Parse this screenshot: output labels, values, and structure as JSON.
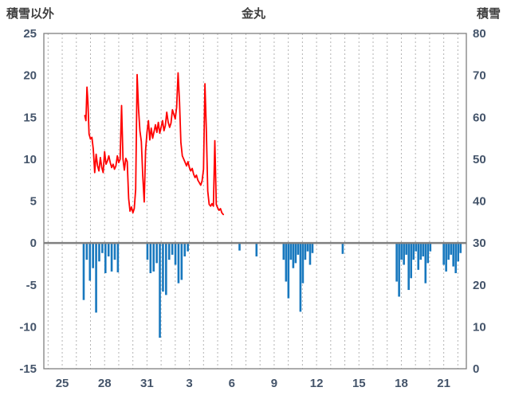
{
  "chart_data": {
    "type": "line",
    "title": "金丸",
    "left_axis_title": "積雪以外",
    "right_axis_title": "積雪",
    "left_ylim": [
      -15,
      25
    ],
    "right_ylim": [
      0,
      80
    ],
    "left_axis_ticks": [
      25,
      20,
      15,
      10,
      5,
      0,
      -5,
      -10,
      -15
    ],
    "right_axis_ticks": [
      80,
      70,
      60,
      50,
      40,
      30,
      20,
      10,
      0
    ],
    "x_tick_labels": [
      "25",
      "28",
      "31",
      "3",
      "6",
      "9",
      "12",
      "15",
      "18",
      "21"
    ],
    "x_tick_days": [
      25,
      28,
      31,
      34,
      37,
      40,
      43,
      46,
      49,
      52
    ],
    "x_domain": [
      23.7,
      53.6
    ],
    "grid": "vertical-dashed-daily",
    "legend": "none",
    "colors": {
      "line": "#ff0000",
      "bar": "#1878be",
      "frame": "#808080",
      "zero_line": "#808080",
      "grid": "#b3b3b3",
      "tick_text": "#44546a",
      "title_text": "#3f3f3f"
    },
    "series": [
      {
        "name": "red-line-left-axis",
        "type": "line",
        "axis": "left",
        "color": "#ff0000",
        "points": [
          [
            26.6,
            15.2
          ],
          [
            26.68,
            14.6
          ],
          [
            26.75,
            18.6
          ],
          [
            26.82,
            16.8
          ],
          [
            26.9,
            13.0
          ],
          [
            27.0,
            12.4
          ],
          [
            27.1,
            12.6
          ],
          [
            27.2,
            11.2
          ],
          [
            27.3,
            8.4
          ],
          [
            27.4,
            10.6
          ],
          [
            27.5,
            9.2
          ],
          [
            27.6,
            8.6
          ],
          [
            27.7,
            10.2
          ],
          [
            27.8,
            9.0
          ],
          [
            27.9,
            8.4
          ],
          [
            28.0,
            10.9
          ],
          [
            28.1,
            9.4
          ],
          [
            28.2,
            9.8
          ],
          [
            28.3,
            10.4
          ],
          [
            28.4,
            9.6
          ],
          [
            28.5,
            9.0
          ],
          [
            28.6,
            9.4
          ],
          [
            28.7,
            8.8
          ],
          [
            28.8,
            9.2
          ],
          [
            28.9,
            10.4
          ],
          [
            29.0,
            9.6
          ],
          [
            29.1,
            10.0
          ],
          [
            29.2,
            16.4
          ],
          [
            29.3,
            10.0
          ],
          [
            29.4,
            8.7
          ],
          [
            29.5,
            10.1
          ],
          [
            29.6,
            9.7
          ],
          [
            29.7,
            5.3
          ],
          [
            29.8,
            3.8
          ],
          [
            29.9,
            4.3
          ],
          [
            30.0,
            3.6
          ],
          [
            30.1,
            4.1
          ],
          [
            30.2,
            6.4
          ],
          [
            30.3,
            20.1
          ],
          [
            30.4,
            16.0
          ],
          [
            30.5,
            13.4
          ],
          [
            30.6,
            12.1
          ],
          [
            30.7,
            8.0
          ],
          [
            30.8,
            4.9
          ],
          [
            30.9,
            11.0
          ],
          [
            31.0,
            13.2
          ],
          [
            31.1,
            14.6
          ],
          [
            31.2,
            12.3
          ],
          [
            31.3,
            13.7
          ],
          [
            31.4,
            12.5
          ],
          [
            31.5,
            13.3
          ],
          [
            31.6,
            14.1
          ],
          [
            31.7,
            13.2
          ],
          [
            31.8,
            14.4
          ],
          [
            31.9,
            13.1
          ],
          [
            32.0,
            13.8
          ],
          [
            32.1,
            14.6
          ],
          [
            32.2,
            13.4
          ],
          [
            32.3,
            14.0
          ],
          [
            32.4,
            15.6
          ],
          [
            32.5,
            14.4
          ],
          [
            32.6,
            13.8
          ],
          [
            32.7,
            14.3
          ],
          [
            32.8,
            15.9
          ],
          [
            33.0,
            14.8
          ],
          [
            33.1,
            16.2
          ],
          [
            33.2,
            20.3
          ],
          [
            33.3,
            16.8
          ],
          [
            33.4,
            12.0
          ],
          [
            33.5,
            10.4
          ],
          [
            33.6,
            10.0
          ],
          [
            33.7,
            9.6
          ],
          [
            33.8,
            9.2
          ],
          [
            33.9,
            9.7
          ],
          [
            34.0,
            9.0
          ],
          [
            34.1,
            8.6
          ],
          [
            34.2,
            8.9
          ],
          [
            34.3,
            8.2
          ],
          [
            34.4,
            7.8
          ],
          [
            34.5,
            8.1
          ],
          [
            34.6,
            7.5
          ],
          [
            34.7,
            7.2
          ],
          [
            34.8,
            6.9
          ],
          [
            34.9,
            7.4
          ],
          [
            35.0,
            8.8
          ],
          [
            35.1,
            19.0
          ],
          [
            35.2,
            13.6
          ],
          [
            35.3,
            6.2
          ],
          [
            35.4,
            4.6
          ],
          [
            35.5,
            4.4
          ],
          [
            35.6,
            4.7
          ],
          [
            35.7,
            4.4
          ],
          [
            35.8,
            12.2
          ],
          [
            35.9,
            4.6
          ],
          [
            36.0,
            4.2
          ],
          [
            36.1,
            3.9
          ],
          [
            36.2,
            4.1
          ],
          [
            36.3,
            3.6
          ],
          [
            36.4,
            3.4
          ]
        ]
      },
      {
        "name": "blue-bars-left-axis",
        "type": "bar",
        "axis": "left",
        "color": "#1878be",
        "points": [
          [
            26.52,
            -6.8
          ],
          [
            26.74,
            -2.0
          ],
          [
            26.96,
            -4.5
          ],
          [
            27.18,
            -3.0
          ],
          [
            27.4,
            -8.3
          ],
          [
            27.62,
            -2.2
          ],
          [
            27.84,
            -1.2
          ],
          [
            28.06,
            -3.6
          ],
          [
            28.28,
            -1.6
          ],
          [
            28.5,
            -3.4
          ],
          [
            28.72,
            -2.0
          ],
          [
            28.94,
            -3.5
          ],
          [
            31.03,
            -2.0
          ],
          [
            31.25,
            -3.6
          ],
          [
            31.47,
            -3.4
          ],
          [
            31.69,
            -2.4
          ],
          [
            31.91,
            -11.3
          ],
          [
            32.13,
            -5.8
          ],
          [
            32.35,
            -6.2
          ],
          [
            32.57,
            -2.0
          ],
          [
            32.79,
            -1.4
          ],
          [
            33.01,
            -2.6
          ],
          [
            33.23,
            -4.8
          ],
          [
            33.45,
            -4.4
          ],
          [
            33.67,
            -1.6
          ],
          [
            33.89,
            -1.0
          ],
          [
            37.55,
            -0.9
          ],
          [
            38.75,
            -1.6
          ],
          [
            40.67,
            -2.0
          ],
          [
            40.84,
            -4.6
          ],
          [
            41.01,
            -6.6
          ],
          [
            41.18,
            -2.0
          ],
          [
            41.35,
            -3.0
          ],
          [
            41.52,
            -2.4
          ],
          [
            41.69,
            -1.4
          ],
          [
            41.86,
            -8.2
          ],
          [
            42.03,
            -4.8
          ],
          [
            42.2,
            -2.0
          ],
          [
            42.37,
            -1.0
          ],
          [
            42.54,
            -2.6
          ],
          [
            42.71,
            -1.2
          ],
          [
            44.85,
            -1.3
          ],
          [
            48.67,
            -4.6
          ],
          [
            48.84,
            -6.4
          ],
          [
            49.01,
            -2.0
          ],
          [
            49.18,
            -2.6
          ],
          [
            49.35,
            -1.4
          ],
          [
            49.52,
            -5.6
          ],
          [
            49.69,
            -4.2
          ],
          [
            49.86,
            -2.0
          ],
          [
            50.03,
            -1.0
          ],
          [
            50.2,
            -3.2
          ],
          [
            50.37,
            -2.0
          ],
          [
            50.54,
            -1.6
          ],
          [
            50.71,
            -4.8
          ],
          [
            50.88,
            -2.4
          ],
          [
            51.05,
            -1.0
          ],
          [
            52.0,
            -2.6
          ],
          [
            52.17,
            -3.4
          ],
          [
            52.34,
            -2.0
          ],
          [
            52.51,
            -1.4
          ],
          [
            52.68,
            -2.8
          ],
          [
            52.85,
            -3.6
          ],
          [
            53.02,
            -2.2
          ],
          [
            53.19,
            -1.2
          ]
        ]
      }
    ]
  }
}
